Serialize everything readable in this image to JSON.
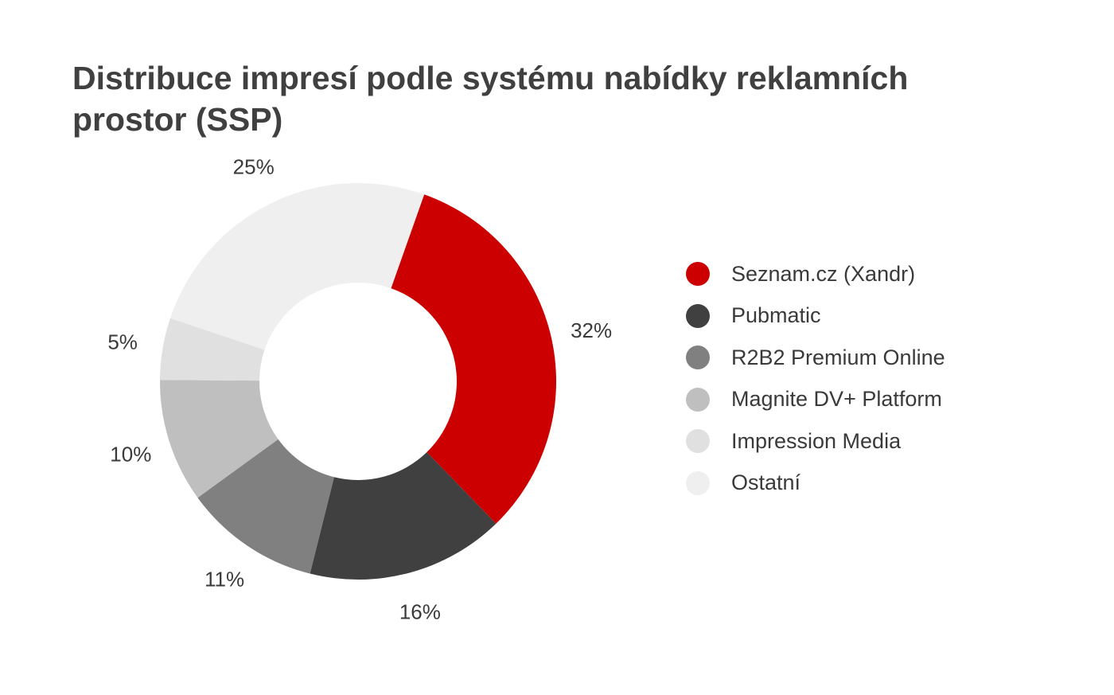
{
  "chart_data": {
    "type": "pie",
    "donut": true,
    "title": "Distribuce impresí podle systému nabídky reklamních prostor (SSP)",
    "series": [
      {
        "name": "Seznam.cz (Xandr)",
        "value": 32,
        "label": "32%",
        "color": "#cc0000"
      },
      {
        "name": "Pubmatic",
        "value": 16,
        "label": "16%",
        "color": "#404040"
      },
      {
        "name": "R2B2 Premium Online",
        "value": 11,
        "label": "11%",
        "color": "#808080"
      },
      {
        "name": "Magnite DV+ Platform",
        "value": 10,
        "label": "10%",
        "color": "#bfbfbf"
      },
      {
        "name": "Impression Media",
        "value": 5,
        "label": "5%",
        "color": "#e0e0e0"
      },
      {
        "name": "Ostatní",
        "value": 25,
        "label": "25%",
        "color": "#efefef"
      }
    ],
    "legend_position": "right"
  }
}
